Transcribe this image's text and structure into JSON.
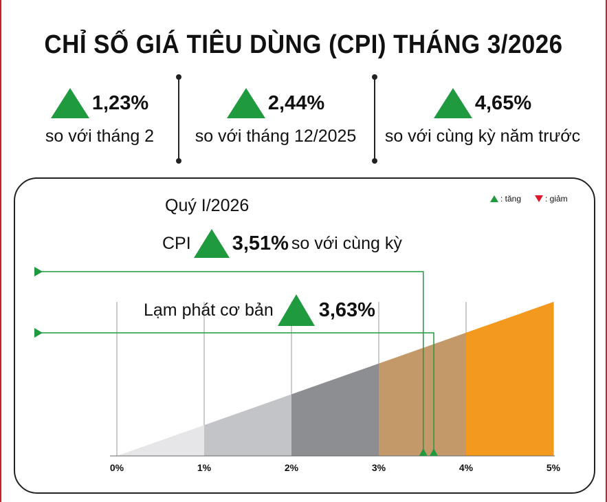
{
  "title": "CHỈ SỐ GIÁ TIÊU DÙNG (CPI) THÁNG 3/2026",
  "stats": [
    {
      "value": "1,23%",
      "label": "so với tháng 2",
      "direction": "up"
    },
    {
      "value": "2,44%",
      "label": "so với tháng 12/2025",
      "direction": "up"
    },
    {
      "value": "4,65%",
      "label": "so với cùng kỳ năm trước",
      "direction": "up"
    }
  ],
  "legend": {
    "up_label": ": tăng",
    "down_label": ": giảm"
  },
  "quarter": {
    "title": "Quý I/2026",
    "cpi_label": "CPI",
    "cpi_value": "3,51%",
    "cpi_suffix": "so với cùng kỳ",
    "core_label": "Lạm phát cơ bản",
    "core_value": "3,63%"
  },
  "colors": {
    "up": "#1f9a3f",
    "down": "#e0162b",
    "accent": "#c91f2b"
  },
  "chart_data": {
    "type": "area",
    "x_ticks": [
      "0%",
      "1%",
      "2%",
      "3%",
      "4%",
      "5%"
    ],
    "xlim": [
      0,
      5
    ],
    "bands": [
      {
        "from": 0,
        "to": 1,
        "color": "#e6e6e8"
      },
      {
        "from": 1,
        "to": 2,
        "color": "#c3c4c7"
      },
      {
        "from": 2,
        "to": 3,
        "color": "#8d8e92"
      },
      {
        "from": 3,
        "to": 4,
        "color": "#c4996a"
      },
      {
        "from": 4,
        "to": 5,
        "color": "#f39a1e"
      }
    ],
    "markers": [
      {
        "name": "CPI",
        "value": 3.51
      },
      {
        "name": "Lạm phát cơ bản",
        "value": 3.63
      }
    ]
  }
}
